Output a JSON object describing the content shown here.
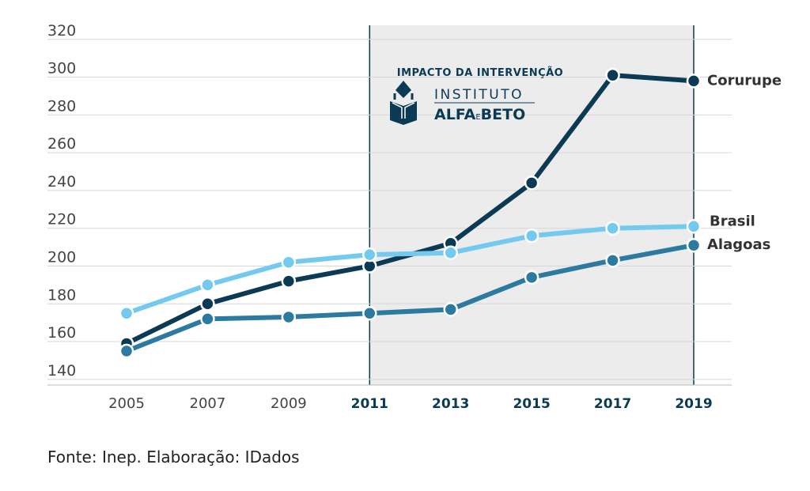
{
  "chart_data": {
    "type": "line",
    "x": [
      2005,
      2007,
      2009,
      2011,
      2013,
      2015,
      2017,
      2019
    ],
    "x_tick_labels": [
      "2005",
      "2007",
      "2009",
      "2011",
      "2013",
      "2015",
      "2017",
      "2019"
    ],
    "x_bold_from": 2011,
    "y_ticks": [
      140,
      160,
      180,
      200,
      220,
      240,
      260,
      280,
      300,
      320
    ],
    "ylim": [
      137,
      322
    ],
    "grid": true,
    "series": [
      {
        "name": "Corurupe",
        "values": [
          159,
          180,
          192,
          200,
          212,
          244,
          301,
          298
        ],
        "color": "#0b3a55"
      },
      {
        "name": "Brasil",
        "values": [
          175,
          190,
          202,
          206,
          207,
          216,
          220,
          221
        ],
        "color": "#74c9ef"
      },
      {
        "name": "Alagoas",
        "values": [
          155,
          172,
          173,
          175,
          177,
          194,
          203,
          211
        ],
        "color": "#2d7aa0"
      }
    ],
    "highlight_range": [
      2011,
      2019
    ],
    "highlight_color": "#ececec",
    "highlight_border_color": "#0b3a55",
    "annotation": {
      "heading": "IMPACTO DA INTERVENÇÃO",
      "logo_line1": "INSTITUTO",
      "logo_line2_a": "ALFA",
      "logo_line2_e": "E",
      "logo_line2_b": "BETO"
    },
    "xlabel": "",
    "ylabel": ""
  },
  "source_note": "Fonte: Inep. Elaboração: IDados"
}
